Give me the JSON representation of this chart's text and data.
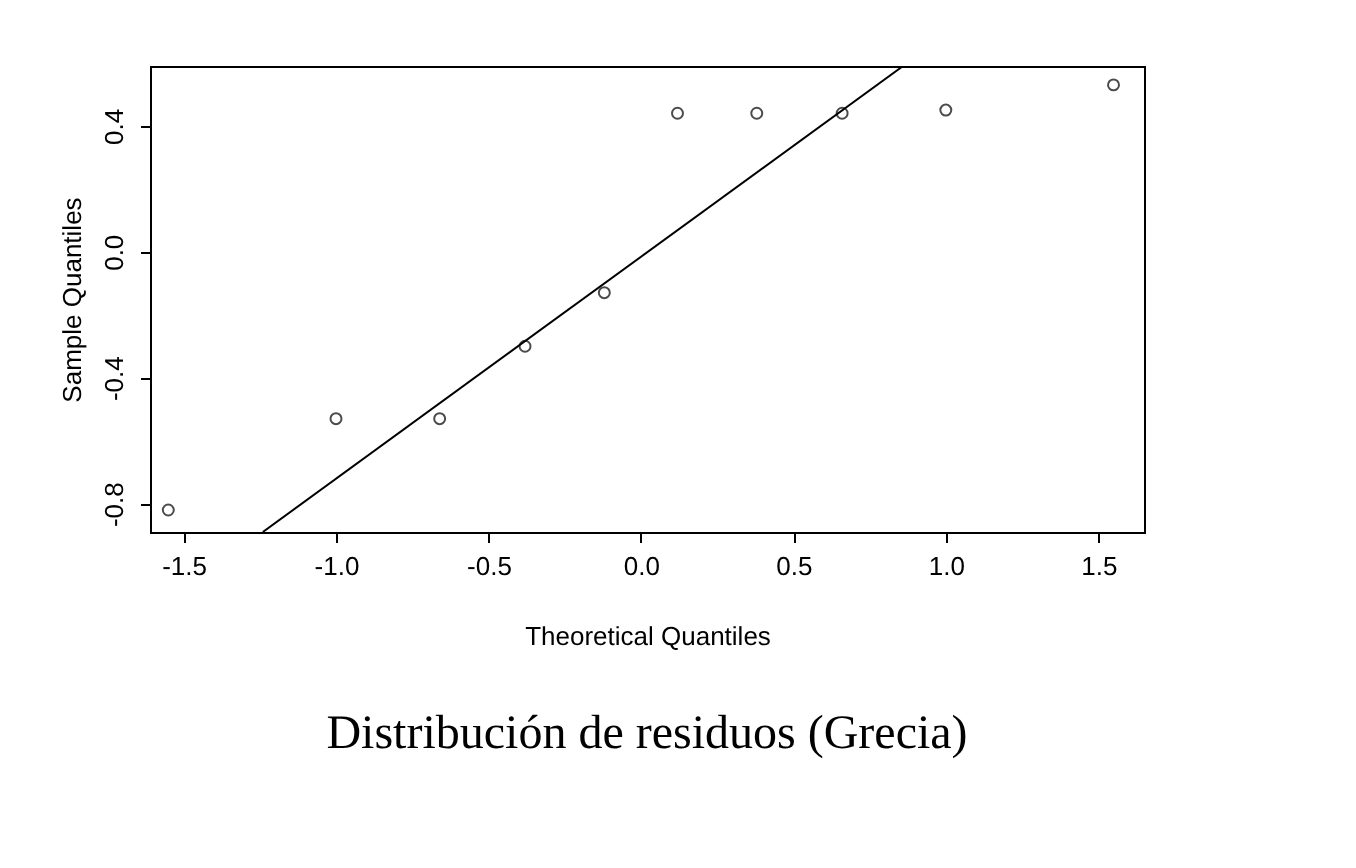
{
  "chart_data": {
    "type": "scatter",
    "title": "Distribución de residuos (Grecia)",
    "xlabel": "Theoretical Quantiles",
    "ylabel": "Sample Quantiles",
    "x": [
      -1.55,
      -1.0,
      -0.66,
      -0.38,
      -0.12,
      0.12,
      0.38,
      0.66,
      1.0,
      1.55
    ],
    "series": [
      {
        "color": "#000000",
        "values": [
          -0.82,
          -0.53,
          -0.53,
          -0.3,
          -0.13,
          0.44,
          0.44,
          0.44,
          0.45,
          0.53
        ]
      },
      {
        "type": "line",
        "marker": "none",
        "color": "#000000",
        "x": [
          -1.24,
          0.86
        ],
        "values": [
          -0.89,
          0.59
        ]
      }
    ],
    "xlim": [
      -1.61,
      1.65
    ],
    "xticks": [
      {
        "value": -1.5,
        "label": "-1.5"
      },
      {
        "value": -1.0,
        "label": "-1.0"
      },
      {
        "value": -0.5,
        "label": "-0.5"
      },
      {
        "value": 0.0,
        "label": "0.0"
      },
      {
        "value": 0.5,
        "label": "0.5"
      },
      {
        "value": 1.0,
        "label": "1.0"
      },
      {
        "value": 1.5,
        "label": "1.5"
      }
    ],
    "ylim": [
      -0.89,
      0.59
    ],
    "yticks": [
      {
        "value": -0.8,
        "label": "-0.8"
      },
      {
        "value": -0.4,
        "label": "-0.4"
      },
      {
        "value": 0.0,
        "label": "0.0"
      },
      {
        "value": 0.4,
        "label": "0.4"
      }
    ],
    "marker": "circle",
    "grid": false
  }
}
